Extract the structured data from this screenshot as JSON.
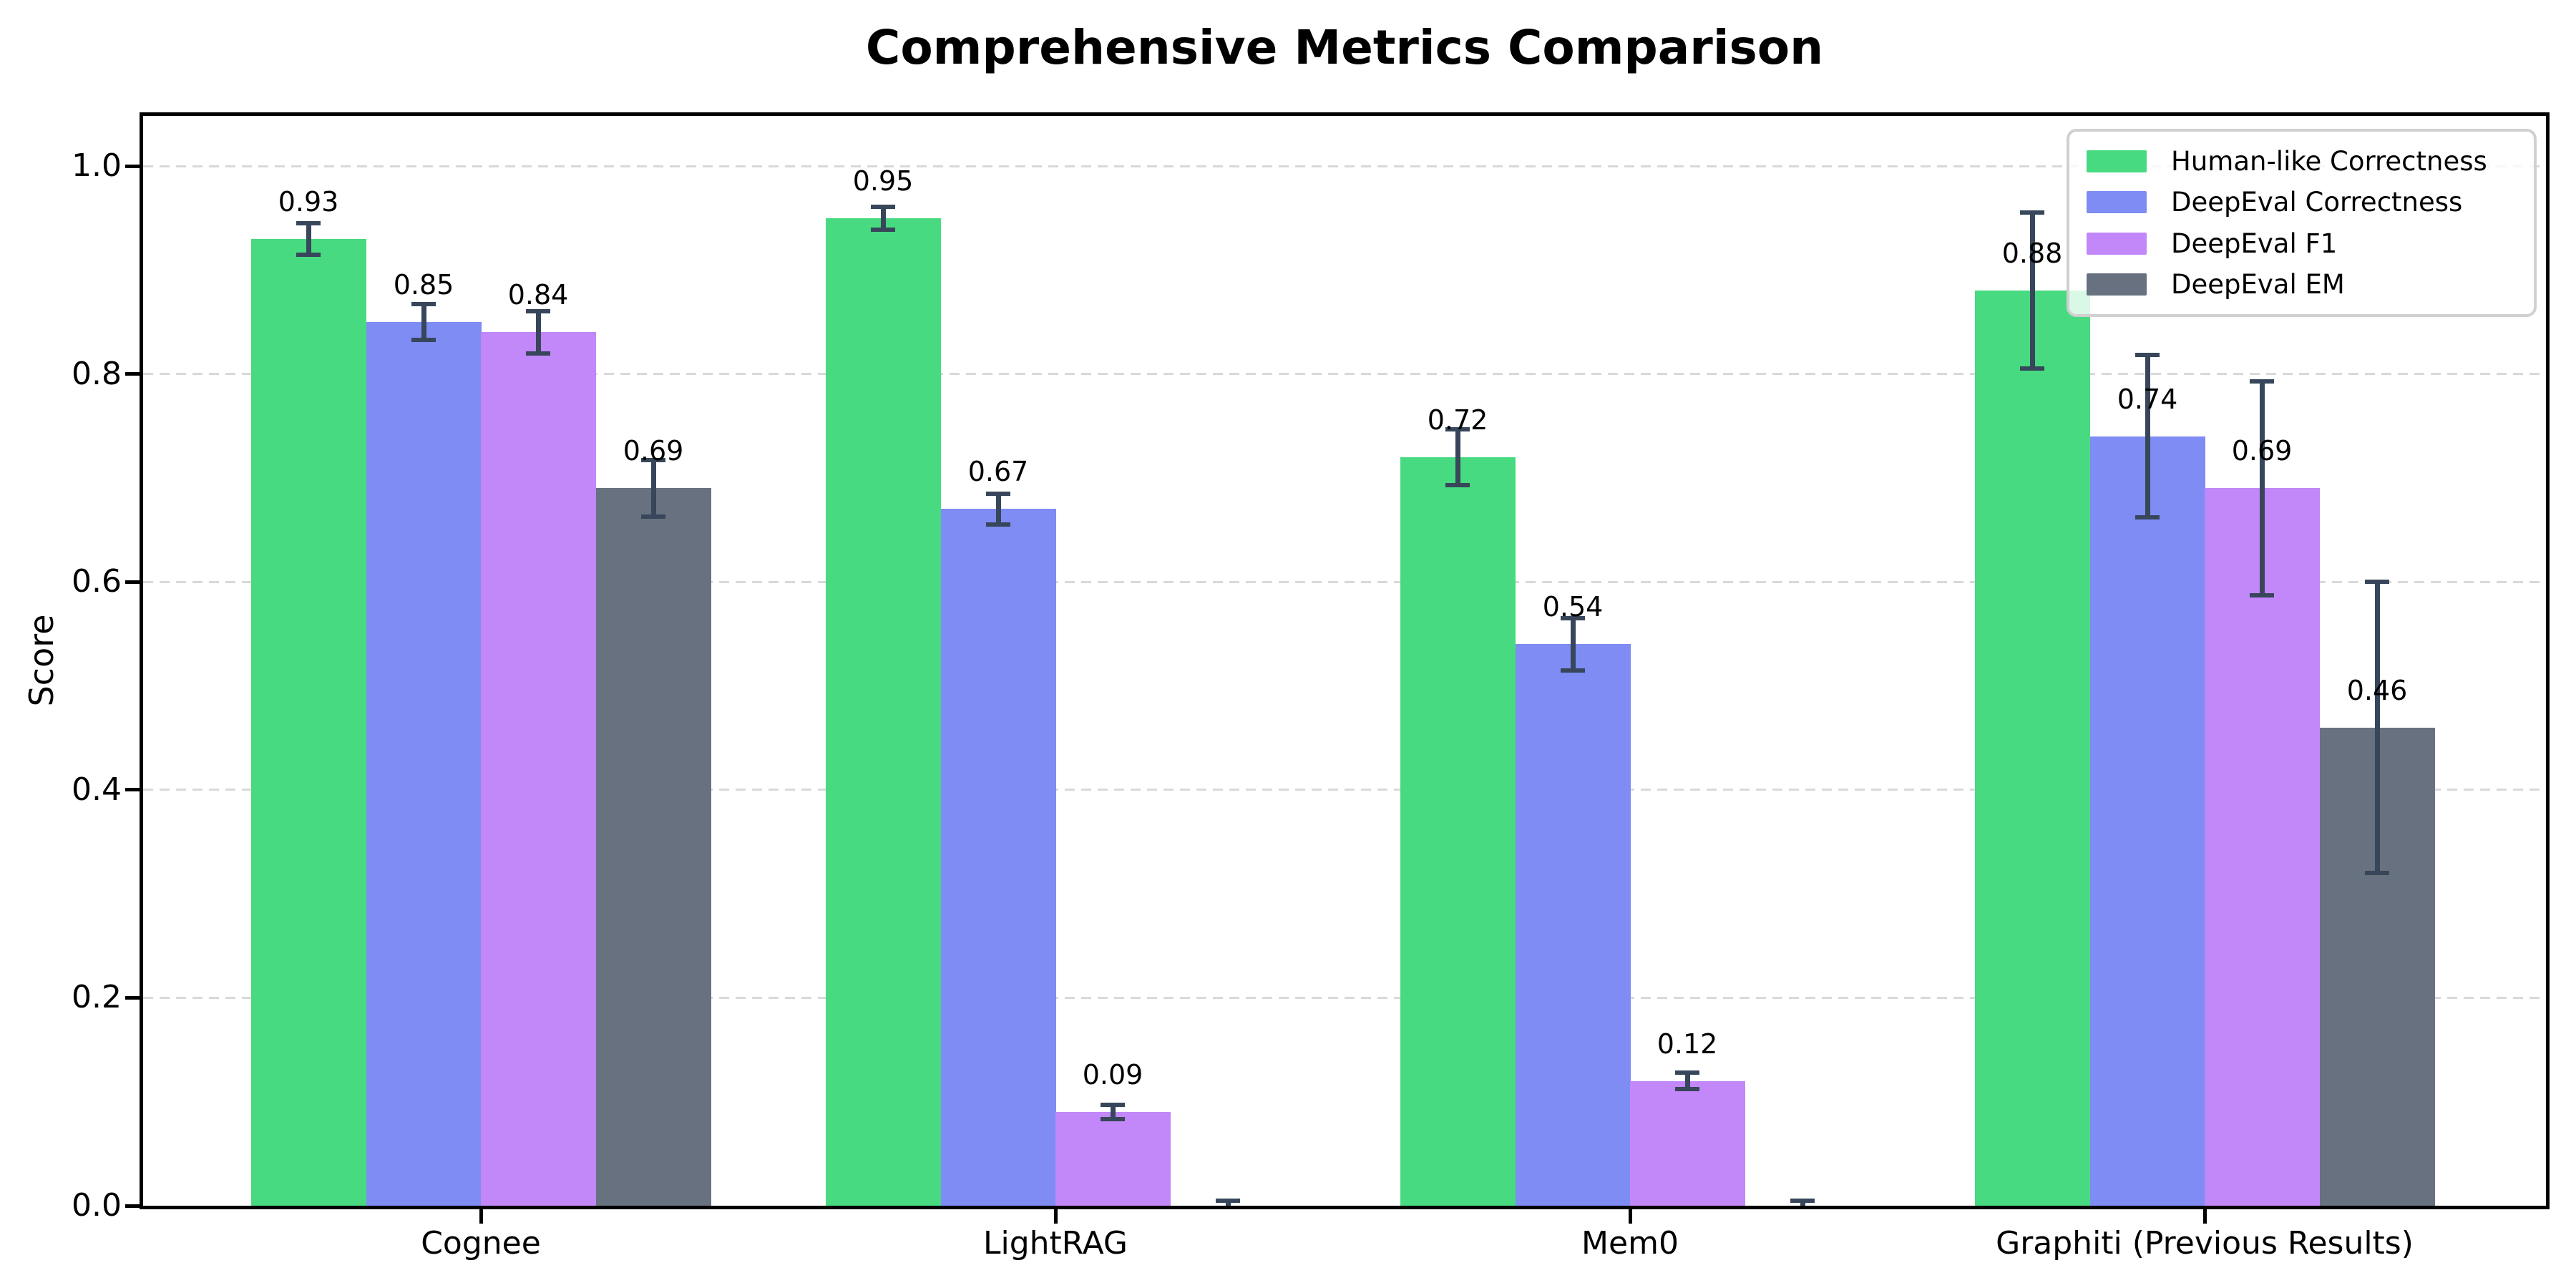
{
  "chart_data": {
    "type": "bar",
    "title": "Comprehensive Metrics Comparison",
    "ylabel": "Score",
    "xlabel": "",
    "categories": [
      "Cognee",
      "LightRAG",
      "Mem0",
      "Graphiti (Previous Results)"
    ],
    "series": [
      {
        "name": "Human-like Correctness",
        "color": "#48da80",
        "values": [
          0.93,
          0.95,
          0.72,
          0.88
        ],
        "errors": [
          0.015,
          0.011,
          0.027,
          0.075
        ],
        "bar_labels": [
          "0.93",
          "0.95",
          "0.72",
          "0.88"
        ]
      },
      {
        "name": "DeepEval Correctness",
        "color": "#7e8cf3",
        "values": [
          0.85,
          0.67,
          0.54,
          0.74
        ],
        "errors": [
          0.017,
          0.015,
          0.025,
          0.078
        ],
        "bar_labels": [
          "0.85",
          "0.67",
          "0.54",
          "0.74"
        ]
      },
      {
        "name": "DeepEval F1",
        "color": "#c287f9",
        "values": [
          0.84,
          0.09,
          0.12,
          0.69
        ],
        "errors": [
          0.02,
          0.007,
          0.008,
          0.103
        ],
        "bar_labels": [
          "0.84",
          "0.09",
          "0.12",
          "0.69"
        ]
      },
      {
        "name": "DeepEval EM",
        "color": "#68717f",
        "values": [
          0.69,
          0.0,
          0.0,
          0.46
        ],
        "errors": [
          0.027,
          0.005,
          0.005,
          0.14
        ],
        "bar_labels": [
          "0.69",
          "",
          "",
          "0.46"
        ]
      }
    ],
    "yticks": [
      "0.0",
      "0.2",
      "0.4",
      "0.6",
      "0.8",
      "1.0"
    ],
    "ytick_values": [
      0.0,
      0.2,
      0.4,
      0.6,
      0.8,
      1.0
    ],
    "ylim": [
      0,
      1.048
    ],
    "grid": "horizontal-dashed",
    "legend_position": "upper-right",
    "colors": {
      "error_bar": "#37465a",
      "grid": "#d9d9d9",
      "axis": "#000000",
      "text": "#000000",
      "legend_border": "#d0d0d0"
    }
  }
}
